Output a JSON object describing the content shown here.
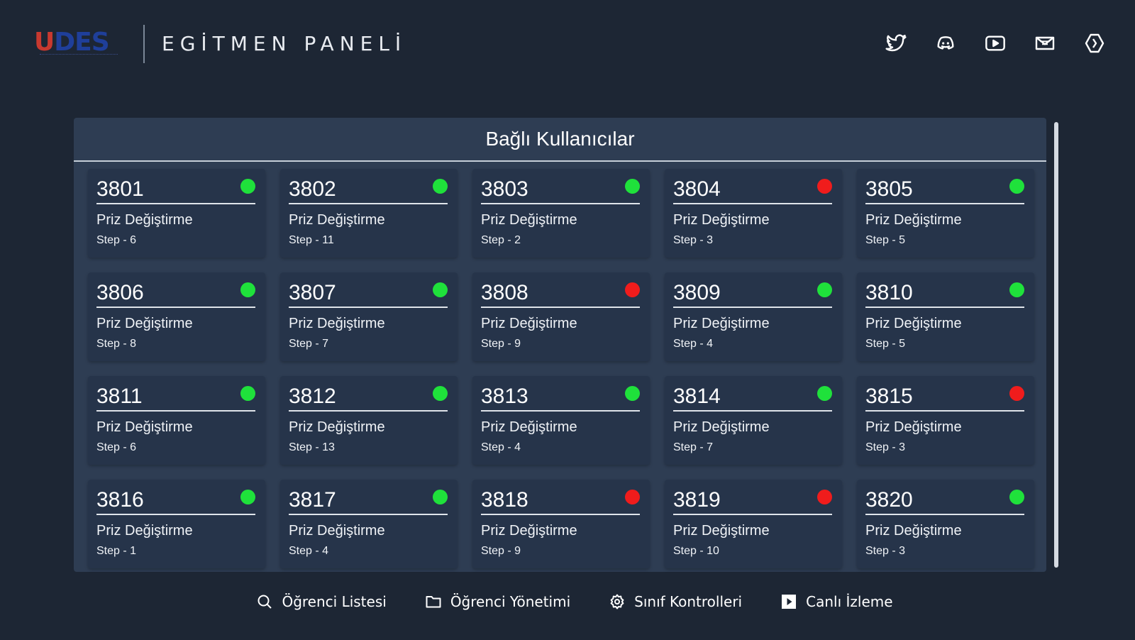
{
  "header": {
    "logo": "UDES",
    "title": "EGİTMEN PANELİ",
    "social_icons": [
      "twitter-icon",
      "discord-icon",
      "youtube-icon",
      "mail-icon",
      "steam-icon"
    ]
  },
  "panel": {
    "title": "Bağlı Kullanıcılar"
  },
  "colors": {
    "background": "#1d2634",
    "panel": "#2e3d53",
    "card": "#26344a",
    "online": "#1fe13b",
    "offline": "#f01c1c"
  },
  "users": [
    {
      "id": "3801",
      "task": "Priz Değiştirme",
      "step": "Step - 6",
      "status": "online"
    },
    {
      "id": "3802",
      "task": "Priz Değiştirme",
      "step": "Step - 11",
      "status": "online"
    },
    {
      "id": "3803",
      "task": "Priz Değiştirme",
      "step": "Step - 2",
      "status": "online"
    },
    {
      "id": "3804",
      "task": "Priz Değiştirme",
      "step": "Step - 3",
      "status": "offline"
    },
    {
      "id": "3805",
      "task": "Priz Değiştirme",
      "step": "Step - 5",
      "status": "online"
    },
    {
      "id": "3806",
      "task": "Priz Değiştirme",
      "step": "Step - 8",
      "status": "online"
    },
    {
      "id": "3807",
      "task": "Priz Değiştirme",
      "step": "Step - 7",
      "status": "online"
    },
    {
      "id": "3808",
      "task": "Priz Değiştirme",
      "step": "Step - 9",
      "status": "offline"
    },
    {
      "id": "3809",
      "task": "Priz Değiştirme",
      "step": "Step - 4",
      "status": "online"
    },
    {
      "id": "3810",
      "task": "Priz Değiştirme",
      "step": "Step - 5",
      "status": "online"
    },
    {
      "id": "3811",
      "task": "Priz Değiştirme",
      "step": "Step - 6",
      "status": "online"
    },
    {
      "id": "3812",
      "task": "Priz Değiştirme",
      "step": "Step - 13",
      "status": "online"
    },
    {
      "id": "3813",
      "task": "Priz Değiştirme",
      "step": "Step - 4",
      "status": "online"
    },
    {
      "id": "3814",
      "task": "Priz Değiştirme",
      "step": "Step - 7",
      "status": "online"
    },
    {
      "id": "3815",
      "task": "Priz Değiştirme",
      "step": "Step - 3",
      "status": "offline"
    },
    {
      "id": "3816",
      "task": "Priz Değiştirme",
      "step": "Step - 1",
      "status": "online"
    },
    {
      "id": "3817",
      "task": "Priz Değiştirme",
      "step": "Step - 4",
      "status": "online"
    },
    {
      "id": "3818",
      "task": "Priz Değiştirme",
      "step": "Step - 9",
      "status": "offline"
    },
    {
      "id": "3819",
      "task": "Priz Değiştirme",
      "step": "Step - 10",
      "status": "offline"
    },
    {
      "id": "3820",
      "task": "Priz Değiştirme",
      "step": "Step - 3",
      "status": "online"
    }
  ],
  "bottom_nav": [
    {
      "label": "Öğrenci Listesi",
      "icon": "search-icon"
    },
    {
      "label": "Öğrenci Yönetimi",
      "icon": "folder-icon"
    },
    {
      "label": "Sınıf Kontrolleri",
      "icon": "gear-icon"
    },
    {
      "label": "Canlı İzleme",
      "icon": "play-icon"
    }
  ]
}
